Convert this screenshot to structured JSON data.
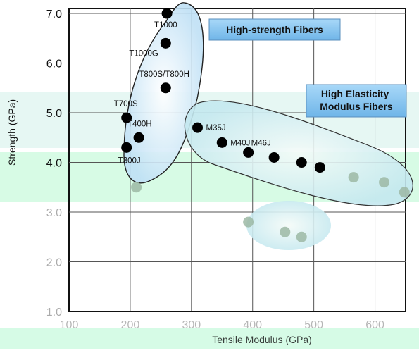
{
  "chart_data": {
    "type": "scatter",
    "title": "",
    "xlabel": "Tensile Modulus (GPa)",
    "ylabel": "Strength (GPa)",
    "xlim": [
      100,
      650
    ],
    "ylim": [
      1.0,
      7.1
    ],
    "x_ticks": [
      "100",
      "200",
      "300",
      "400",
      "500",
      "600"
    ],
    "y_ticks": [
      "1.0",
      "2.0",
      "3.0",
      "4.0",
      "5.0",
      "6.0",
      "7.0"
    ],
    "grid": true,
    "groups": [
      {
        "name": "High-strength Fibers",
        "color": "#bfe0f5"
      },
      {
        "name": "High Elasticity Modulus Fibers",
        "color": "#bfe0f5"
      }
    ],
    "points": [
      {
        "label": "T1000",
        "x": 260,
        "y": 7.0
      },
      {
        "label": "T1000G",
        "x": 258,
        "y": 6.4
      },
      {
        "label": "T800S/T800H",
        "x": 258,
        "y": 5.5
      },
      {
        "label": "T700S",
        "x": 194,
        "y": 4.9
      },
      {
        "label": "T400H",
        "x": 214,
        "y": 4.5
      },
      {
        "label": "T300J",
        "x": 194,
        "y": 4.3
      },
      {
        "label": "M35J",
        "x": 310,
        "y": 4.7
      },
      {
        "label": "M40J",
        "x": 350,
        "y": 4.4
      },
      {
        "label": "M46J",
        "x": 393,
        "y": 4.2
      },
      {
        "label": "",
        "x": 435,
        "y": 4.1
      },
      {
        "label": "",
        "x": 480,
        "y": 4.0
      },
      {
        "label": "",
        "x": 210,
        "y": 3.5
      },
      {
        "label": "",
        "x": 510,
        "y": 3.9
      },
      {
        "label": "",
        "x": 565,
        "y": 3.7
      },
      {
        "label": "",
        "x": 615,
        "y": 3.6
      },
      {
        "label": "",
        "x": 648,
        "y": 3.4
      },
      {
        "label": "",
        "x": 393,
        "y": 2.8
      },
      {
        "label": "",
        "x": 453,
        "y": 2.6
      },
      {
        "label": "",
        "x": 480,
        "y": 2.5
      }
    ]
  },
  "colors": {
    "marker": "#000000",
    "grid": "#555555",
    "callout_fill": "#8cc8f0",
    "wash": "#d8fbe6"
  }
}
